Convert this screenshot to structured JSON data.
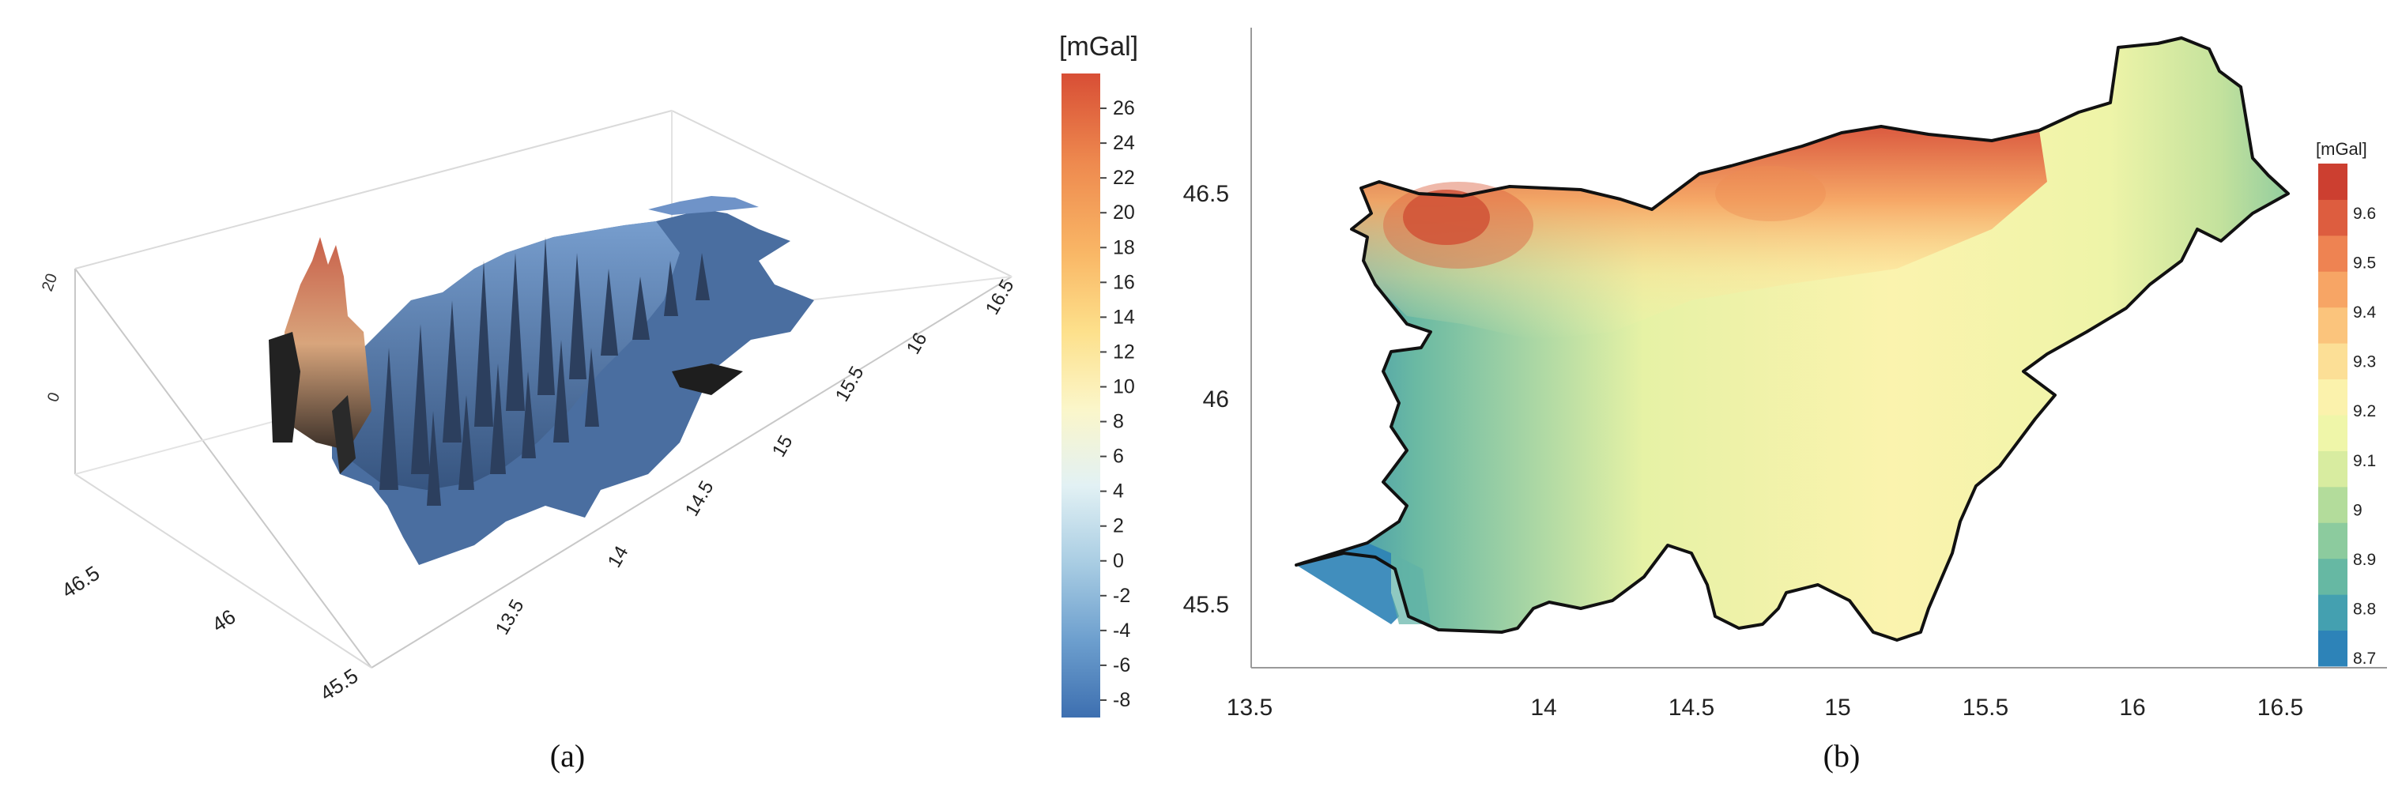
{
  "chart_data": [
    {
      "panel_label": "(a)",
      "type": "surface3d",
      "legend_unit": "[mGal]",
      "colorbar": {
        "ticks": [
          "26",
          "24",
          "22",
          "20",
          "18",
          "16",
          "14",
          "12",
          "10",
          "8",
          "6",
          "4",
          "2",
          "0",
          "-2",
          "-4",
          "-6",
          "-8"
        ],
        "range": [
          -9,
          28
        ],
        "colors": [
          "#3d6fb0",
          "#6d9fce",
          "#a9cde3",
          "#e2f1f4",
          "#fbf6c9",
          "#fde08b",
          "#f9b766",
          "#ee8a4f",
          "#d84e35"
        ]
      },
      "x_axis": {
        "ticks": [
          "13.5",
          "14",
          "14.5",
          "15",
          "15.5",
          "16",
          "16.5"
        ]
      },
      "y_axis": {
        "ticks": [
          "46.5",
          "46",
          "45.5"
        ]
      },
      "z_axis": {
        "ticks": [
          "20",
          "0"
        ]
      }
    },
    {
      "panel_label": "(b)",
      "type": "contour-map",
      "legend_unit": "[mGal]",
      "colorbar": {
        "ticks": [
          "9.6",
          "9.5",
          "9.4",
          "9.3",
          "9.2",
          "9.1",
          "9",
          "8.9",
          "8.8",
          "8.7"
        ],
        "colors": [
          "#2d83b8",
          "#44a0b0",
          "#66b8a3",
          "#8ccb9e",
          "#b3dc9b",
          "#d8eca0",
          "#eff6a9",
          "#fbf2ac",
          "#fcdf96",
          "#fbc47c",
          "#f7a565",
          "#ee8352",
          "#dd5d3f",
          "#cc3f30"
        ]
      },
      "x_axis": {
        "ticks": [
          "13.5",
          "14",
          "14.5",
          "15",
          "15.5",
          "16",
          "16.5"
        ]
      },
      "y_axis": {
        "ticks": [
          "46.5",
          "46",
          "45.5"
        ]
      }
    }
  ]
}
